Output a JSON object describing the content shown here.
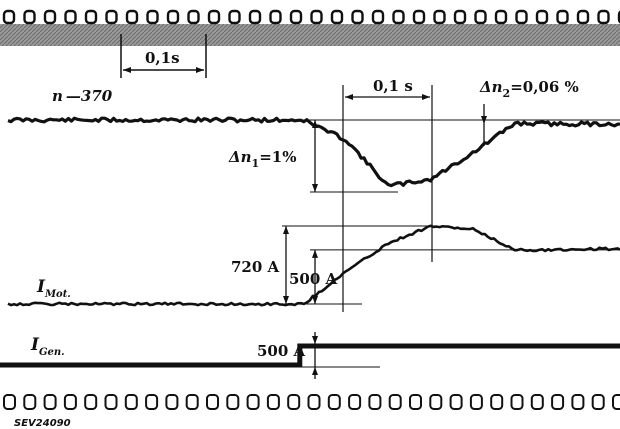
{
  "chart_data": {
    "type": "line",
    "title": "",
    "xlabel": "",
    "ylabel": "",
    "grid": false,
    "time_scale": {
      "label": "0,1s",
      "value_s": 0.1
    },
    "step_interval": {
      "label": "0,1 s",
      "value_s": 0.1
    },
    "x_unit": "s",
    "x": [
      0.0,
      0.05,
      0.1,
      0.15,
      0.2,
      0.25,
      0.3,
      0.35,
      0.4,
      0.45,
      0.5,
      0.55,
      0.6,
      0.65,
      0.7,
      0.75,
      0.8,
      0.85,
      0.9
    ],
    "series": [
      {
        "name": "n",
        "label": "n —370",
        "unit": "%",
        "values": [
          0,
          0,
          0,
          0,
          0,
          0,
          0,
          0,
          -0.3,
          -1.0,
          -0.9,
          -0.5,
          -0.05,
          -0.06,
          -0.06,
          -0.06,
          -0.06,
          -0.06,
          -0.06
        ]
      },
      {
        "name": "I_Mot",
        "label_main": "I",
        "label_sub": "Mot.",
        "unit": "A",
        "values": [
          0,
          0,
          0,
          0,
          0,
          0,
          0,
          0,
          300,
          560,
          720,
          690,
          500,
          500,
          510,
          500,
          505,
          500,
          500
        ]
      },
      {
        "name": "I_Gen",
        "label_main": "I",
        "label_sub": "Gen.",
        "unit": "A",
        "values": [
          0,
          0,
          0,
          0,
          0,
          0,
          0,
          500,
          500,
          500,
          500,
          500,
          500,
          500,
          500,
          500,
          500,
          500,
          500
        ]
      }
    ],
    "annotations": [
      {
        "id": "dn1",
        "label_main": "Δn",
        "label_sub": "1",
        "label_value": "=1%",
        "value": -1.0,
        "unit": "%"
      },
      {
        "id": "dn2",
        "label_main": "Δn",
        "label_sub": "2",
        "label_value": "=0,06 %",
        "value": -0.06,
        "unit": "%"
      },
      {
        "id": "peak",
        "label": "720 A",
        "value": 720,
        "unit": "A"
      },
      {
        "id": "steady_mot",
        "label": "500 A",
        "value": 500,
        "unit": "A"
      },
      {
        "id": "step_gen",
        "label": "500 A",
        "value": 500,
        "unit": "A"
      }
    ],
    "figure_ref": "SEV24090"
  }
}
